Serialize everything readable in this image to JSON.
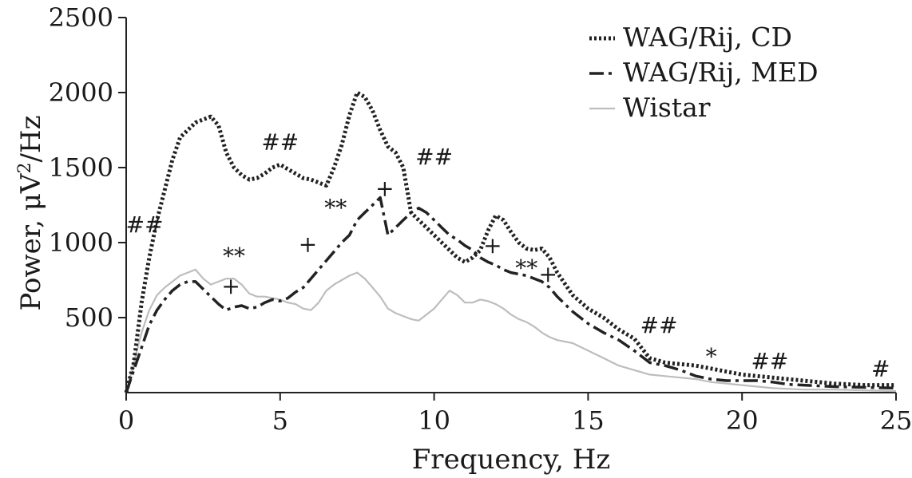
{
  "chart_data": {
    "type": "line",
    "xlabel": "Frequency, Hz",
    "ylabel_prefix": "Power, μV",
    "ylabel_sup": "2",
    "ylabel_suffix": "/Hz",
    "xlim": [
      0,
      25
    ],
    "ylim": [
      0,
      2500
    ],
    "xticks": [
      0,
      5,
      10,
      15,
      20,
      25
    ],
    "yticks": [
      500,
      1000,
      1500,
      2000,
      2500
    ],
    "grid": false,
    "legend_position": "top-right",
    "series": [
      {
        "name": "WAG/Rij, CD",
        "style": "dotted",
        "color": "#222222",
        "x": [
          0,
          0.25,
          0.5,
          0.75,
          1.0,
          1.25,
          1.5,
          1.75,
          2.0,
          2.25,
          2.5,
          2.75,
          3.0,
          3.25,
          3.5,
          3.75,
          4.0,
          4.25,
          4.5,
          4.75,
          5.0,
          5.25,
          5.5,
          5.75,
          6.0,
          6.25,
          6.5,
          6.75,
          7.0,
          7.25,
          7.5,
          7.75,
          8.0,
          8.25,
          8.5,
          8.75,
          9.0,
          9.25,
          9.5,
          9.75,
          10.0,
          10.25,
          10.5,
          10.75,
          11.0,
          11.25,
          11.5,
          11.75,
          12.0,
          12.25,
          12.5,
          12.75,
          13.0,
          13.25,
          13.5,
          13.75,
          14.0,
          14.5,
          15.0,
          15.5,
          16.0,
          16.5,
          17.0,
          17.5,
          18.0,
          18.5,
          19.0,
          19.5,
          20.0,
          20.5,
          21.0,
          21.5,
          22.0,
          23.0,
          24.0,
          25.0
        ],
        "y": [
          0,
          200,
          600,
          900,
          1150,
          1350,
          1550,
          1700,
          1750,
          1800,
          1820,
          1840,
          1780,
          1600,
          1500,
          1450,
          1420,
          1430,
          1460,
          1500,
          1520,
          1490,
          1460,
          1430,
          1420,
          1400,
          1380,
          1500,
          1650,
          1850,
          2000,
          1970,
          1880,
          1750,
          1640,
          1600,
          1500,
          1200,
          1150,
          1100,
          1050,
          1000,
          950,
          900,
          870,
          900,
          950,
          1080,
          1180,
          1150,
          1070,
          1000,
          960,
          950,
          960,
          900,
          800,
          650,
          560,
          500,
          420,
          360,
          230,
          200,
          190,
          180,
          160,
          140,
          120,
          110,
          100,
          90,
          80,
          60,
          50,
          50
        ]
      },
      {
        "name": "WAG/Rij, MED",
        "style": "dashdot",
        "color": "#222222",
        "x": [
          0,
          0.25,
          0.5,
          0.75,
          1.0,
          1.25,
          1.5,
          1.75,
          2.0,
          2.25,
          2.5,
          2.75,
          3.0,
          3.25,
          3.5,
          3.75,
          4.0,
          4.25,
          4.5,
          4.75,
          5.0,
          5.25,
          5.5,
          5.75,
          6.0,
          6.25,
          6.5,
          6.75,
          7.0,
          7.25,
          7.5,
          7.75,
          8.0,
          8.25,
          8.5,
          8.75,
          9.0,
          9.25,
          9.5,
          9.75,
          10.0,
          10.25,
          10.5,
          10.75,
          11.0,
          11.25,
          11.5,
          11.75,
          12.0,
          12.25,
          12.5,
          12.75,
          13.0,
          13.25,
          13.5,
          13.75,
          14.0,
          14.5,
          15.0,
          15.5,
          16.0,
          16.5,
          17.0,
          17.5,
          18.0,
          18.5,
          19.0,
          19.5,
          20.0,
          20.5,
          21.0,
          21.5,
          22.0,
          23.0,
          24.0,
          25.0
        ],
        "y": [
          0,
          150,
          300,
          450,
          550,
          620,
          680,
          720,
          740,
          740,
          690,
          640,
          590,
          550,
          570,
          580,
          560,
          570,
          600,
          620,
          610,
          630,
          670,
          700,
          760,
          820,
          880,
          940,
          1000,
          1050,
          1150,
          1200,
          1250,
          1300,
          1050,
          1100,
          1150,
          1200,
          1230,
          1200,
          1150,
          1100,
          1050,
          1020,
          980,
          950,
          900,
          870,
          850,
          820,
          800,
          790,
          780,
          760,
          740,
          700,
          640,
          540,
          460,
          400,
          350,
          280,
          200,
          180,
          150,
          110,
          90,
          80,
          80,
          80,
          70,
          55,
          50,
          40,
          35,
          30
        ]
      },
      {
        "name": "Wistar",
        "style": "solid",
        "color": "#bdbdbd",
        "x": [
          0,
          0.25,
          0.5,
          0.75,
          1.0,
          1.25,
          1.5,
          1.75,
          2.0,
          2.25,
          2.5,
          2.75,
          3.0,
          3.25,
          3.5,
          3.75,
          4.0,
          4.25,
          4.5,
          4.75,
          5.0,
          5.25,
          5.5,
          5.75,
          6.0,
          6.25,
          6.5,
          6.75,
          7.0,
          7.25,
          7.5,
          7.75,
          8.0,
          8.25,
          8.5,
          8.75,
          9.0,
          9.25,
          9.5,
          9.75,
          10.0,
          10.25,
          10.5,
          10.75,
          11.0,
          11.25,
          11.5,
          11.75,
          12.0,
          12.25,
          12.5,
          12.75,
          13.0,
          13.25,
          13.5,
          13.75,
          14.0,
          14.5,
          15.0,
          15.5,
          16.0,
          16.5,
          17.0,
          17.5,
          18.0,
          18.5,
          19.0,
          19.5,
          20.0,
          20.5,
          21.0,
          21.5,
          22.0,
          23.0,
          24.0,
          25.0
        ],
        "y": [
          0,
          200,
          400,
          550,
          650,
          700,
          740,
          780,
          800,
          820,
          760,
          720,
          740,
          760,
          760,
          720,
          660,
          640,
          640,
          630,
          620,
          600,
          590,
          560,
          550,
          600,
          680,
          720,
          750,
          780,
          800,
          760,
          700,
          640,
          560,
          530,
          510,
          490,
          480,
          520,
          560,
          620,
          680,
          650,
          600,
          600,
          620,
          610,
          590,
          560,
          520,
          490,
          470,
          440,
          400,
          370,
          350,
          330,
          280,
          230,
          180,
          150,
          120,
          110,
          100,
          90,
          70,
          60,
          50,
          40,
          30,
          25,
          20,
          20,
          15,
          10
        ]
      }
    ],
    "annotations": [
      {
        "text": "##",
        "x": 0.6,
        "y": 1070
      },
      {
        "text": "##",
        "x": 5.0,
        "y": 1620
      },
      {
        "text": "##",
        "x": 10.0,
        "y": 1520
      },
      {
        "text": "**",
        "x": 3.5,
        "y": 860
      },
      {
        "text": "**",
        "x": 6.8,
        "y": 1180
      },
      {
        "text": "**",
        "x": 13.0,
        "y": 780
      },
      {
        "text": "##",
        "x": 17.3,
        "y": 400
      },
      {
        "text": "*",
        "x": 19.0,
        "y": 190
      },
      {
        "text": "##",
        "x": 20.9,
        "y": 160
      },
      {
        "text": "#",
        "x": 24.5,
        "y": 110
      },
      {
        "text": "+",
        "x": 3.4,
        "y": 660
      },
      {
        "text": "+",
        "x": 5.9,
        "y": 940
      },
      {
        "text": "+",
        "x": 8.4,
        "y": 1310
      },
      {
        "text": "+",
        "x": 11.9,
        "y": 930
      },
      {
        "text": "+",
        "x": 13.7,
        "y": 740
      }
    ]
  }
}
